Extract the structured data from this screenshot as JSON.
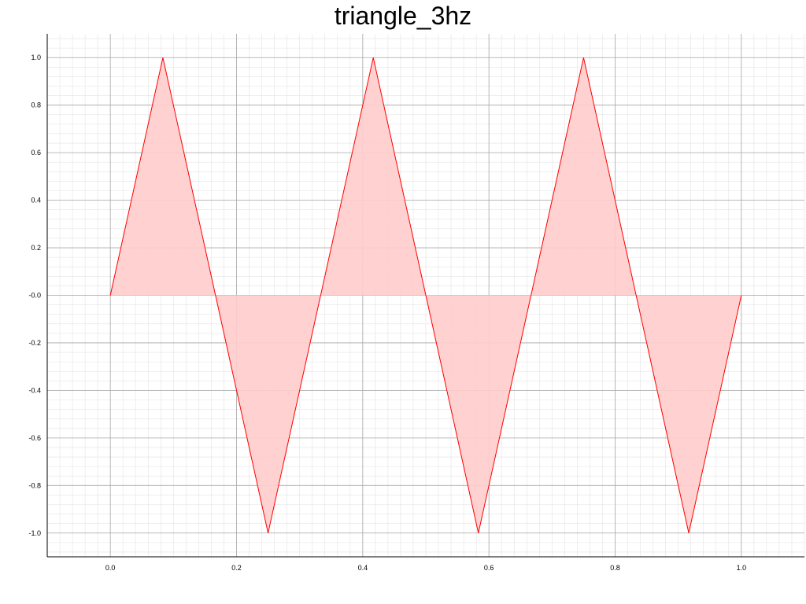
{
  "chart_data": {
    "type": "area",
    "title": "triangle_3hz",
    "xlabel": "",
    "ylabel": "",
    "xlim": [
      -0.1,
      1.1
    ],
    "ylim": [
      -1.1,
      1.1
    ],
    "grid": true,
    "minor_grid": true,
    "x_ticks": [
      0.0,
      0.2,
      0.4,
      0.6,
      0.8,
      1.0
    ],
    "x_tick_labels": [
      "0.0",
      "0.2",
      "0.4",
      "0.6",
      "0.8",
      "1.0"
    ],
    "y_ticks": [
      1.0,
      0.8,
      0.6,
      0.4,
      0.2,
      0.0,
      -0.2,
      -0.4,
      -0.6,
      -0.8,
      -1.0
    ],
    "y_tick_labels": [
      "1.0",
      "0.8",
      "0.6",
      "0.4",
      "0.2",
      "-0.0",
      "-0.2",
      "-0.4",
      "-0.6",
      "-0.8",
      "-1.0"
    ],
    "series": [
      {
        "line_color": "#ff0000",
        "fill_color": "#ffcccc",
        "fill_baseline": 0,
        "x": [
          0.0,
          0.0833,
          0.1667,
          0.25,
          0.3333,
          0.4167,
          0.5,
          0.5833,
          0.6667,
          0.75,
          0.8333,
          0.9167,
          1.0
        ],
        "y": [
          0.0,
          1.0,
          0.0,
          -1.0,
          0.0,
          1.0,
          0.0,
          -1.0,
          0.0,
          1.0,
          0.0,
          -1.0,
          0.0
        ]
      }
    ]
  }
}
